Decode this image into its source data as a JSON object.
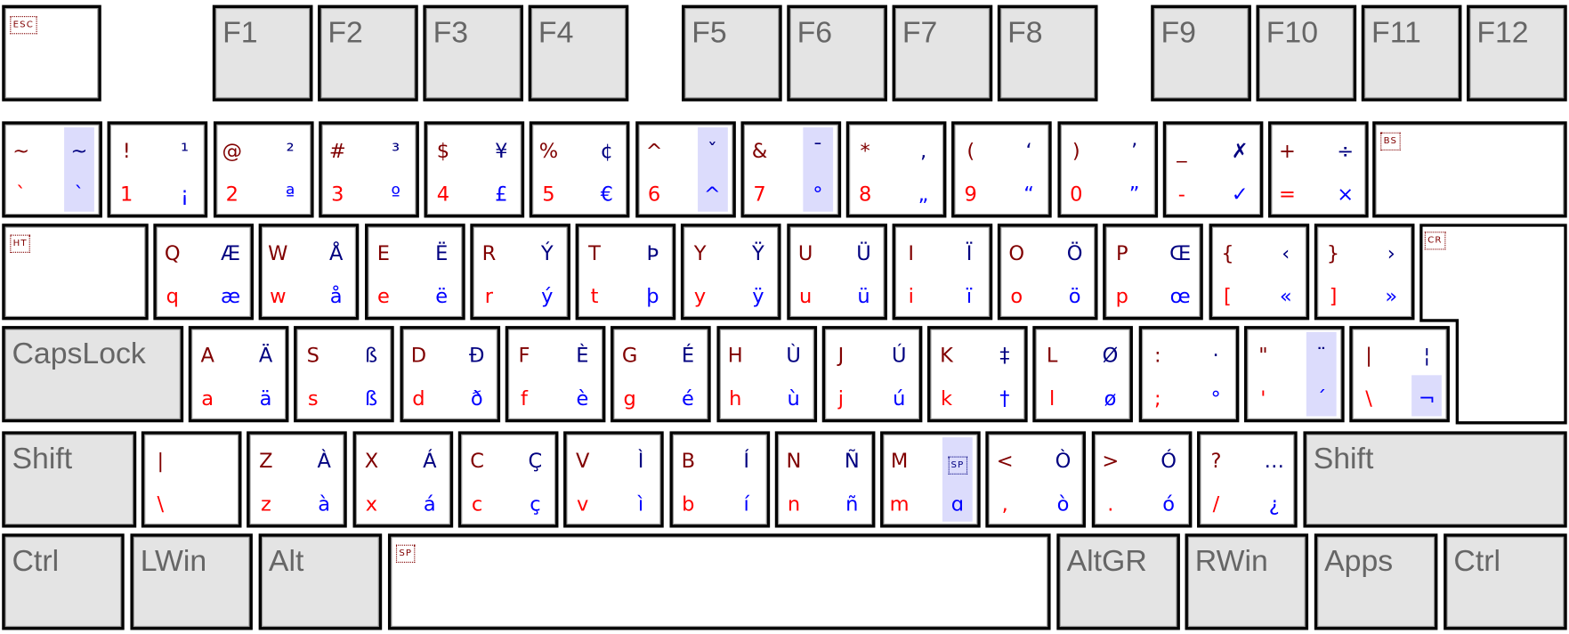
{
  "colors": {
    "shift": "#800000",
    "altgr_shift": "#000080",
    "base": "#ff0000",
    "altgr": "#0000ff",
    "dead_key_highlight": "#dcdcfc",
    "modifier_key": "#e4e4e4",
    "modifier_text": "#666666"
  },
  "rows": [
    [
      {
        "type": "special",
        "label": "ESC"
      },
      {
        "type": "mod",
        "label": "F1"
      },
      {
        "type": "mod",
        "label": "F2"
      },
      {
        "type": "mod",
        "label": "F3"
      },
      {
        "type": "mod",
        "label": "F4"
      },
      {
        "type": "mod",
        "label": "F5"
      },
      {
        "type": "mod",
        "label": "F6"
      },
      {
        "type": "mod",
        "label": "F7"
      },
      {
        "type": "mod",
        "label": "F8"
      },
      {
        "type": "mod",
        "label": "F9"
      },
      {
        "type": "mod",
        "label": "F10"
      },
      {
        "type": "mod",
        "label": "F11"
      },
      {
        "type": "mod",
        "label": "F12"
      }
    ],
    [
      {
        "type": "char",
        "tl": "~",
        "tr": "~",
        "bl": "`",
        "br": "`",
        "hl": "both"
      },
      {
        "type": "char",
        "tl": "!",
        "tr": "¹",
        "bl": "1",
        "br": "¡"
      },
      {
        "type": "char",
        "tl": "@",
        "tr": "²",
        "bl": "2",
        "br": "ª"
      },
      {
        "type": "char",
        "tl": "#",
        "tr": "³",
        "bl": "3",
        "br": "º"
      },
      {
        "type": "char",
        "tl": "$",
        "tr": "¥",
        "bl": "4",
        "br": "£"
      },
      {
        "type": "char",
        "tl": "%",
        "tr": "¢",
        "bl": "5",
        "br": "€"
      },
      {
        "type": "char",
        "tl": "^",
        "tr": "ˇ",
        "bl": "6",
        "br": "^",
        "hl": "both"
      },
      {
        "type": "char",
        "tl": "&",
        "tr": "¯",
        "bl": "7",
        "br": "°",
        "hl": "both"
      },
      {
        "type": "char",
        "tl": "*",
        "tr": "‚",
        "bl": "8",
        "br": "„"
      },
      {
        "type": "char",
        "tl": "(",
        "tr": "‘",
        "bl": "9",
        "br": "“"
      },
      {
        "type": "char",
        "tl": ")",
        "tr": "’",
        "bl": "0",
        "br": "”"
      },
      {
        "type": "char",
        "tl": "_",
        "tr": "✗",
        "bl": "-",
        "br": "✓"
      },
      {
        "type": "char",
        "tl": "+",
        "tr": "÷",
        "bl": "=",
        "br": "×"
      },
      {
        "type": "special",
        "label": "BS"
      }
    ],
    [
      {
        "type": "special",
        "label": "HT"
      },
      {
        "type": "char",
        "tl": "Q",
        "tr": "Æ",
        "bl": "q",
        "br": "æ"
      },
      {
        "type": "char",
        "tl": "W",
        "tr": "Å",
        "bl": "w",
        "br": "å"
      },
      {
        "type": "char",
        "tl": "E",
        "tr": "Ë",
        "bl": "e",
        "br": "ë"
      },
      {
        "type": "char",
        "tl": "R",
        "tr": "Ý",
        "bl": "r",
        "br": "ý"
      },
      {
        "type": "char",
        "tl": "T",
        "tr": "Þ",
        "bl": "t",
        "br": "þ"
      },
      {
        "type": "char",
        "tl": "Y",
        "tr": "Ÿ",
        "bl": "y",
        "br": "ÿ"
      },
      {
        "type": "char",
        "tl": "U",
        "tr": "Ü",
        "bl": "u",
        "br": "ü"
      },
      {
        "type": "char",
        "tl": "I",
        "tr": "Ï",
        "bl": "i",
        "br": "ï"
      },
      {
        "type": "char",
        "tl": "O",
        "tr": "Ö",
        "bl": "o",
        "br": "ö"
      },
      {
        "type": "char",
        "tl": "P",
        "tr": "Œ",
        "bl": "p",
        "br": "œ"
      },
      {
        "type": "char",
        "tl": "{",
        "tr": "‹",
        "bl": "[",
        "br": "«"
      },
      {
        "type": "char",
        "tl": "}",
        "tr": "›",
        "bl": "]",
        "br": "»"
      },
      {
        "type": "special",
        "label": "CR"
      }
    ],
    [
      {
        "type": "mod",
        "label": "CapsLock"
      },
      {
        "type": "char",
        "tl": "A",
        "tr": "Ä",
        "bl": "a",
        "br": "ä"
      },
      {
        "type": "char",
        "tl": "S",
        "tr": "ß",
        "bl": "s",
        "br": "ß"
      },
      {
        "type": "char",
        "tl": "D",
        "tr": "Đ",
        "bl": "d",
        "br": "ð"
      },
      {
        "type": "char",
        "tl": "F",
        "tr": "È",
        "bl": "f",
        "br": "è"
      },
      {
        "type": "char",
        "tl": "G",
        "tr": "É",
        "bl": "g",
        "br": "é"
      },
      {
        "type": "char",
        "tl": "H",
        "tr": "Ù",
        "bl": "h",
        "br": "ù"
      },
      {
        "type": "char",
        "tl": "J",
        "tr": "Ú",
        "bl": "j",
        "br": "ú"
      },
      {
        "type": "char",
        "tl": "K",
        "tr": "‡",
        "bl": "k",
        "br": "†"
      },
      {
        "type": "char",
        "tl": "L",
        "tr": "Ø",
        "bl": "l",
        "br": "ø"
      },
      {
        "type": "char",
        "tl": ":",
        "tr": "·",
        "bl": ";",
        "br": "°"
      },
      {
        "type": "char",
        "tl": "\"",
        "tr": "¨",
        "bl": "'",
        "br": "´",
        "hl": "both"
      },
      {
        "type": "char",
        "tl": "|",
        "tr": "¦",
        "bl": "\\",
        "br": "¬",
        "hl": "bottom"
      }
    ],
    [
      {
        "type": "mod",
        "label": "Shift"
      },
      {
        "type": "char",
        "tl": "|",
        "tr": "",
        "bl": "\\",
        "br": ""
      },
      {
        "type": "char",
        "tl": "Z",
        "tr": "À",
        "bl": "z",
        "br": "à"
      },
      {
        "type": "char",
        "tl": "X",
        "tr": "Á",
        "bl": "x",
        "br": "á"
      },
      {
        "type": "char",
        "tl": "C",
        "tr": "Ç",
        "bl": "c",
        "br": "ç"
      },
      {
        "type": "char",
        "tl": "V",
        "tr": "Ì",
        "bl": "v",
        "br": "ì"
      },
      {
        "type": "char",
        "tl": "B",
        "tr": "Í",
        "bl": "b",
        "br": "í"
      },
      {
        "type": "char",
        "tl": "N",
        "tr": "Ñ",
        "bl": "n",
        "br": "ñ"
      },
      {
        "type": "char",
        "tl": "M",
        "tr": "SP",
        "tr_boxed": true,
        "bl": "m",
        "br": "ɑ",
        "hl": "both"
      },
      {
        "type": "char",
        "tl": "<",
        "tr": "Ò",
        "bl": ",",
        "br": "ò"
      },
      {
        "type": "char",
        "tl": ">",
        "tr": "Ó",
        "bl": ".",
        "br": "ó"
      },
      {
        "type": "char",
        "tl": "?",
        "tr": "…",
        "bl": "/",
        "br": "¿"
      },
      {
        "type": "mod",
        "label": "Shift"
      }
    ],
    [
      {
        "type": "mod",
        "label": "Ctrl"
      },
      {
        "type": "mod",
        "label": "LWin"
      },
      {
        "type": "mod",
        "label": "Alt"
      },
      {
        "type": "special",
        "label": "SP"
      },
      {
        "type": "mod",
        "label": "AltGR"
      },
      {
        "type": "mod",
        "label": "RWin"
      },
      {
        "type": "mod",
        "label": "Apps"
      },
      {
        "type": "mod",
        "label": "Ctrl"
      }
    ]
  ]
}
